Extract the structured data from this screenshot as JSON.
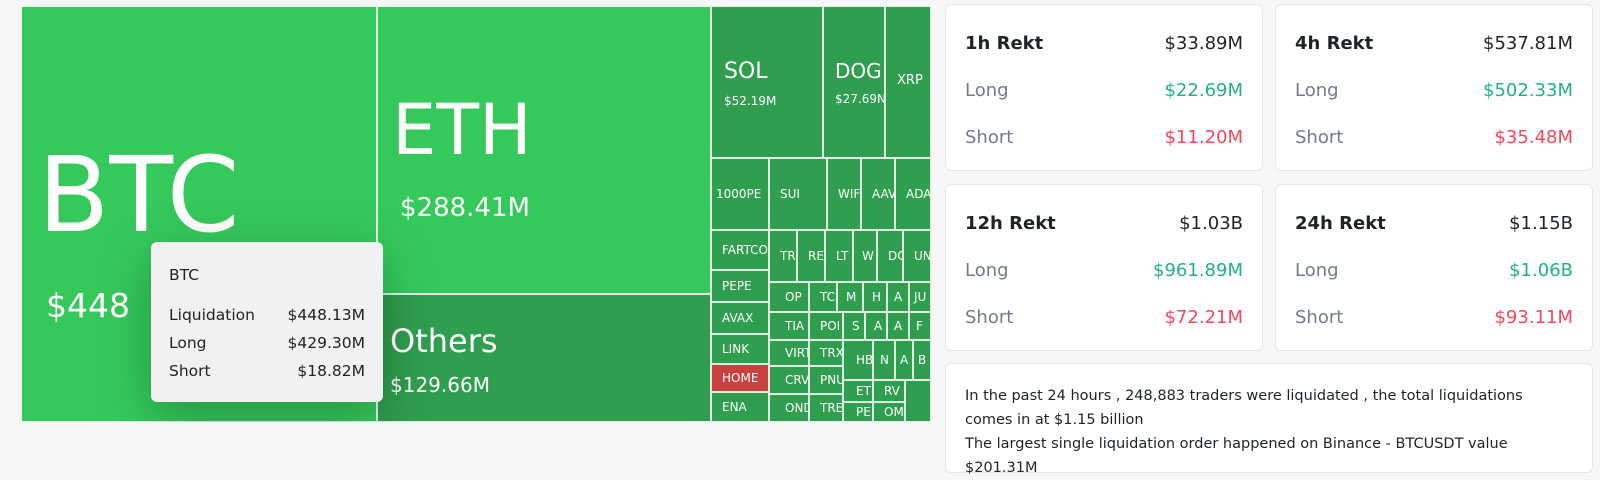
{
  "treemap": {
    "btc": {
      "label": "BTC",
      "value": "$448"
    },
    "eth": {
      "label": "ETH",
      "value": "$288.41M"
    },
    "others": {
      "label": "Others",
      "value": "$129.66M"
    },
    "sol": {
      "label": "SOL",
      "value": "$52.19M"
    },
    "doge": {
      "label": "DOG",
      "value": "$27.69N"
    },
    "xrp": {
      "label": "XRP"
    },
    "small": [
      "1000PE",
      "SUI",
      "WIF",
      "AAV",
      "ADA",
      "FARTCO",
      "TR",
      "RE",
      "LT",
      "W",
      "DC",
      "UN",
      "PEPE",
      "OP",
      "TC",
      "M",
      "H",
      "A",
      "JU",
      "AVAX",
      "TIA",
      "POI",
      "S",
      "A",
      "A",
      "F",
      "LINK",
      "VIRT",
      "TRX",
      "HOME",
      "CRV",
      "PNU",
      "HB",
      "N",
      "A",
      "B",
      "ENA",
      "OND",
      "TRE",
      "ET",
      "RV",
      "PE",
      "OM"
    ]
  },
  "tooltip": {
    "title": "BTC",
    "rows": [
      {
        "label": "Liquidation",
        "value": "$448.13M"
      },
      {
        "label": "Long",
        "value": "$429.30M"
      },
      {
        "label": "Short",
        "value": "$18.82M"
      }
    ]
  },
  "cards": [
    {
      "title": "1h Rekt",
      "total": "$33.89M",
      "long_label": "Long",
      "long": "$22.69M",
      "short_label": "Short",
      "short": "$11.20M"
    },
    {
      "title": "4h Rekt",
      "total": "$537.81M",
      "long_label": "Long",
      "long": "$502.33M",
      "short_label": "Short",
      "short": "$35.48M"
    },
    {
      "title": "12h Rekt",
      "total": "$1.03B",
      "long_label": "Long",
      "long": "$961.89M",
      "short_label": "Short",
      "short": "$72.21M"
    },
    {
      "title": "24h Rekt",
      "total": "$1.15B",
      "long_label": "Long",
      "long": "$1.06B",
      "short_label": "Short",
      "short": "$93.11M"
    }
  ],
  "summary": {
    "line1": "In the past 24 hours , 248,883 traders were liquidated , the total liquidations comes in at $1.15 billion",
    "line2": "The largest single liquidation order happened on Binance - BTCUSDT value $201.31M"
  },
  "colors": {
    "bright_green": "#35c95c",
    "dark_green": "#2f9e4e",
    "long_green": "#1fb387",
    "short_red": "#f6465d",
    "highlight_red": "#c9403f"
  }
}
